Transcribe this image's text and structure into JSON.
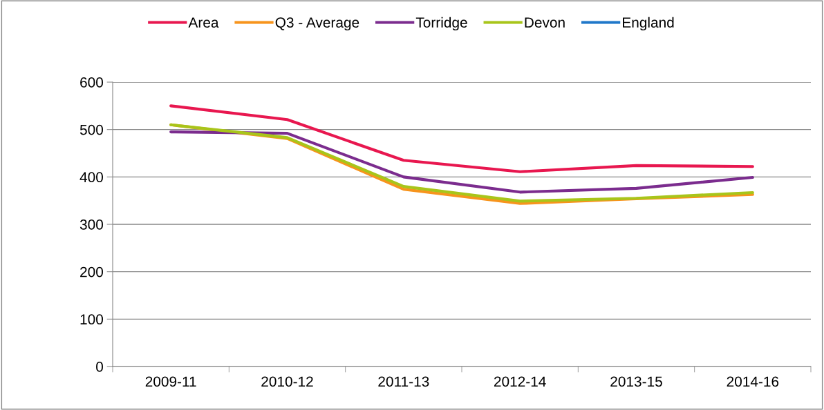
{
  "chart_data": {
    "type": "line",
    "categories": [
      "2009-11",
      "2010-12",
      "2011-13",
      "2012-14",
      "2013-15",
      "2014-16"
    ],
    "series": [
      {
        "name": "Area",
        "color": "#e8174f",
        "values": [
          550,
          521,
          435,
          411,
          424,
          422
        ]
      },
      {
        "name": "Q3 - Average",
        "color": "#f7941d",
        "values": [
          510,
          481,
          374,
          344,
          354,
          363
        ]
      },
      {
        "name": "Torridge",
        "color": "#7b2c8e",
        "values": [
          495,
          492,
          400,
          368,
          376,
          399
        ]
      },
      {
        "name": "Devon",
        "color": "#a8c51a",
        "values": [
          510,
          483,
          380,
          349,
          355,
          367
        ]
      },
      {
        "name": "England",
        "color": "#1f77c9",
        "values": [
          null,
          null,
          null,
          null,
          null,
          null
        ]
      }
    ],
    "ylim": [
      0,
      600
    ],
    "yticks": [
      0,
      100,
      200,
      300,
      400,
      500,
      600
    ],
    "grid": "y",
    "legend": "top",
    "marker": "none",
    "line_style": "solid"
  }
}
